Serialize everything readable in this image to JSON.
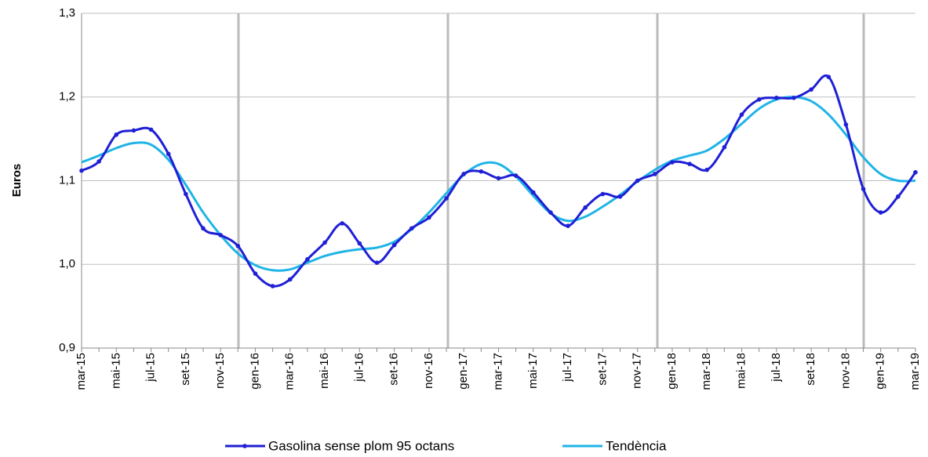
{
  "chart_data": {
    "type": "line",
    "y_label": "Euros",
    "categories": [
      "mar-15",
      null,
      "mai-15",
      null,
      "jul-15",
      null,
      "set-15",
      null,
      "nov-15",
      null,
      "gen-16",
      null,
      "mar-16",
      null,
      "mai-16",
      null,
      "jul-16",
      null,
      "set-16",
      null,
      "nov-16",
      null,
      "gen-17",
      null,
      "mar-17",
      null,
      "mai-17",
      null,
      "jul-17",
      null,
      "set-17",
      null,
      "nov-17",
      null,
      "gen-18",
      null,
      "mar-18",
      null,
      "mai-18",
      null,
      "jul-18",
      null,
      "set-18",
      null,
      "nov-18",
      null,
      "gen-19",
      null,
      "mar-19"
    ],
    "series": [
      {
        "name": "Gasolina sense plom 95 octans",
        "color": "#1f1fd6",
        "markers": true,
        "values": [
          1.112,
          1.123,
          1.155,
          1.16,
          1.161,
          1.132,
          1.084,
          1.043,
          1.035,
          1.022,
          0.989,
          0.974,
          0.982,
          1.006,
          1.026,
          1.049,
          1.025,
          1.002,
          1.023,
          1.043,
          1.056,
          1.079,
          1.108,
          1.111,
          1.103,
          1.106,
          1.086,
          1.062,
          1.046,
          1.068,
          1.084,
          1.081,
          1.1,
          1.108,
          1.122,
          1.12,
          1.113,
          1.14,
          1.179,
          1.197,
          1.199,
          1.199,
          1.209,
          1.224,
          1.167,
          1.09,
          1.062,
          1.081,
          1.11
        ]
      },
      {
        "name": "Tendència",
        "color": "#1fb4e6",
        "markers": false,
        "values": [
          1.122,
          1.13,
          1.139,
          1.145,
          1.143,
          1.125,
          1.095,
          1.062,
          1.035,
          1.013,
          0.999,
          0.993,
          0.994,
          1.002,
          1.01,
          1.015,
          1.018,
          1.02,
          1.027,
          1.042,
          1.062,
          1.085,
          1.107,
          1.12,
          1.12,
          1.105,
          1.082,
          1.061,
          1.052,
          1.057,
          1.069,
          1.083,
          1.099,
          1.113,
          1.124,
          1.13,
          1.136,
          1.15,
          1.168,
          1.186,
          1.197,
          1.2,
          1.195,
          1.179,
          1.155,
          1.128,
          1.108,
          1.1,
          1.1
        ]
      }
    ],
    "ylim": [
      0.9,
      1.3
    ],
    "yticks": [
      {
        "value": 0.9,
        "label": "0,9"
      },
      {
        "value": 1.0,
        "label": "1,0"
      },
      {
        "value": 1.1,
        "label": "1,1"
      },
      {
        "value": 1.2,
        "label": "1,2"
      },
      {
        "value": 1.3,
        "label": "1,3"
      }
    ],
    "grid": true,
    "legend": "bottom"
  }
}
